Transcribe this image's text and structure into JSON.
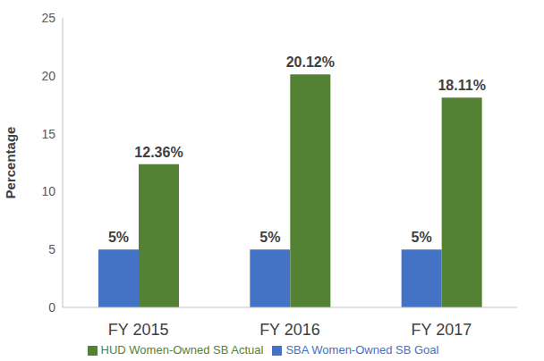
{
  "chart_data": {
    "type": "bar",
    "y_label": "Percentage",
    "categories": [
      "FY 2015",
      "FY 2016",
      "FY 2017"
    ],
    "series": [
      {
        "name": "SBA Women-Owned SB Goal",
        "color": "#4472c4",
        "values": [
          5,
          5,
          5
        ],
        "value_labels": [
          "5%",
          "5%",
          "5%"
        ]
      },
      {
        "name": "HUD Women-Owned SB Actual",
        "color": "#548235",
        "values": [
          12.36,
          20.12,
          18.11
        ],
        "value_labels": [
          "12.36%",
          "20.12%",
          "18.11%"
        ]
      }
    ],
    "ylim": [
      0,
      25
    ],
    "yticks": [
      0,
      5,
      10,
      15,
      20,
      25
    ],
    "grid": false,
    "legend": "bottom",
    "data_labels": true
  }
}
